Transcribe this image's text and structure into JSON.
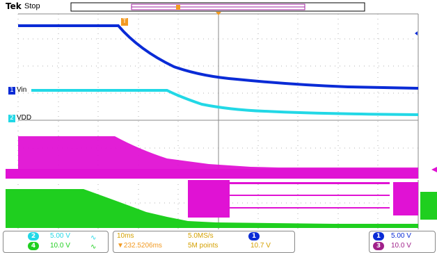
{
  "header": {
    "brand": "Tek",
    "state": "Stop"
  },
  "trigger_marker": "T",
  "channel_labels": {
    "vin": "Vin",
    "vdd": "VDD"
  },
  "channel_numbers": {
    "ch1": "1",
    "ch2": "2",
    "ch3": "3",
    "ch4": "4"
  },
  "readouts": {
    "ch2_scale": "5.00 V",
    "ch4_scale": "10.0 V",
    "timebase": "10ms",
    "sample_rate": "5.0MS/s",
    "trigger_pos": "▼232.5206ms",
    "record_length": "5M points",
    "trigger_level": "10.7 V",
    "ch1_scale": "5.00 V",
    "ch3_scale": "10.0 V"
  },
  "colors": {
    "ch1": "#0a2bd6",
    "ch2": "#22d8e6",
    "ch3": "#e012d4",
    "ch4": "#1fcf1f",
    "trigger": "#f29a22",
    "grid": "#b0b0b0"
  },
  "icons": [
    "trigger-t-icon",
    "ch1-ground-marker",
    "ch2-ground-marker",
    "trigger-level-arrow",
    "ch4-coupling-icon"
  ]
}
